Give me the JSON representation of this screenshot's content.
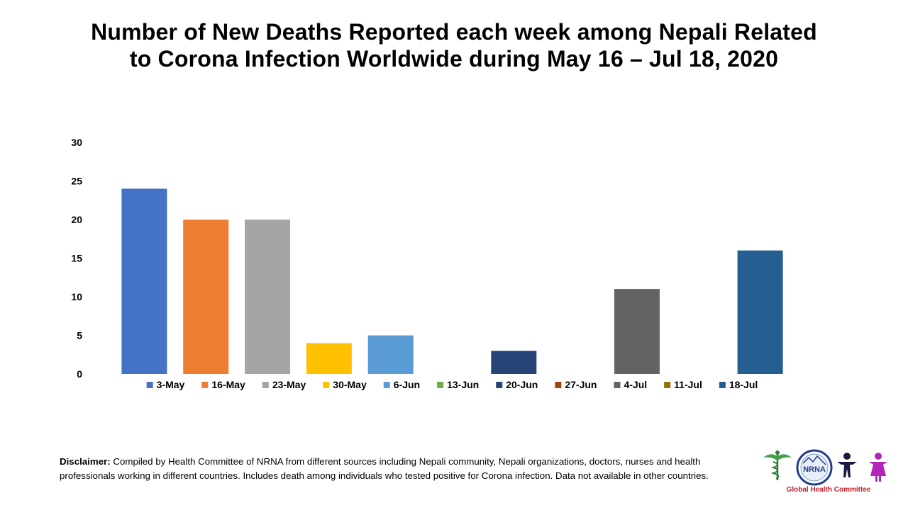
{
  "title": {
    "line1": "Number of New Deaths Reported each week among Nepali Related",
    "line2": "to Corona Infection Worldwide during May 16 – Jul 18, 2020"
  },
  "chart_data": {
    "type": "bar",
    "categories": [
      "3-May",
      "16-May",
      "23-May",
      "30-May",
      "6-Jun",
      "13-Jun",
      "20-Jun",
      "27-Jun",
      "4-Jul",
      "11-Jul",
      "18-Jul"
    ],
    "values": [
      24,
      20,
      20,
      4,
      5,
      0,
      3,
      0,
      11,
      0,
      16
    ],
    "colors": [
      "#4472C4",
      "#ED7D31",
      "#A5A5A5",
      "#FFC000",
      "#5B9BD5",
      "#70AD47",
      "#264478",
      "#9E480E",
      "#636363",
      "#997300",
      "#255E91"
    ],
    "yticks": [
      "0",
      "5",
      "10",
      "15",
      "20",
      "25",
      "30"
    ],
    "ylim": [
      0,
      30
    ],
    "legend_position": "bottom",
    "grid": false
  },
  "disclaimer": {
    "label": "Disclaimer:",
    "text": " Compiled by Health Committee of NRNA from different sources including Nepali community, Nepali organizations, doctors, nurses and health professionals working in different countries. Includes death among individuals who tested positive for Corona infection. Data not available in other countries."
  },
  "logo": {
    "emblem_text": "NRNA",
    "caption": "Global Health Committee"
  }
}
